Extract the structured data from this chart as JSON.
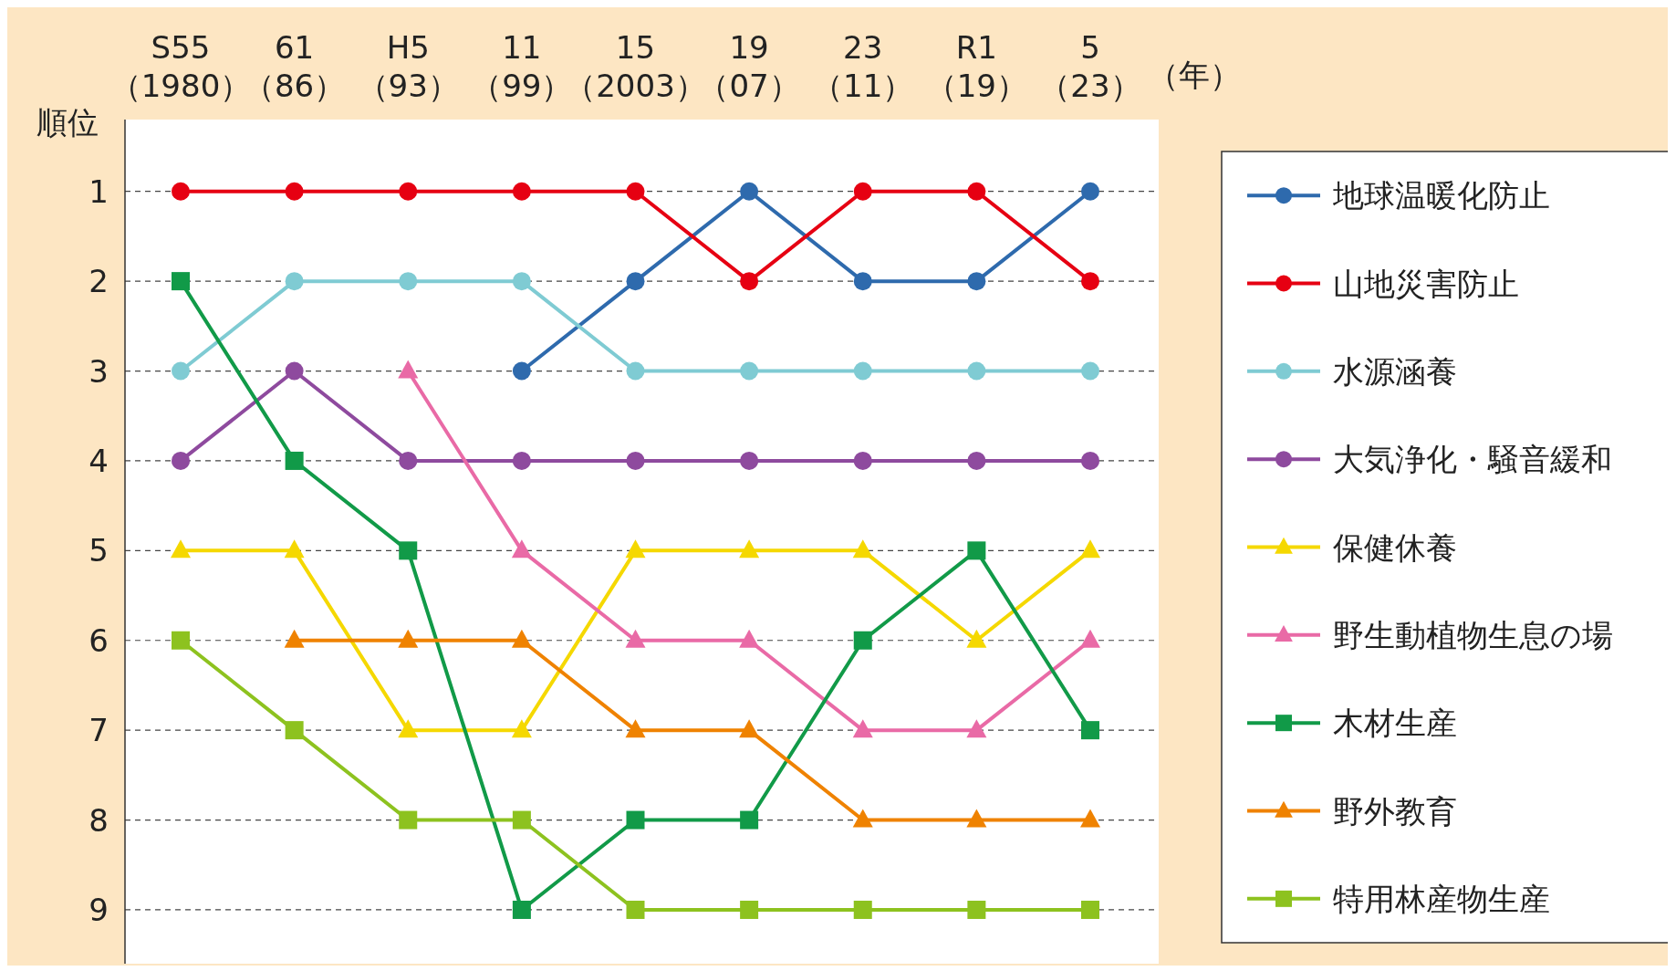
{
  "chart_data": {
    "type": "line",
    "xlabel": "（年）",
    "ylabel": "順位",
    "categories": [
      "S55\n（1980）",
      "61\n（86）",
      "H5\n（93）",
      "11\n（99）",
      "15\n（2003）",
      "19\n（07）",
      "23\n（11）",
      "R1\n（19）",
      "5\n（23）"
    ],
    "ylim": [
      9.6,
      0.2
    ],
    "yticks": [
      1,
      2,
      3,
      4,
      5,
      6,
      7,
      8,
      9
    ],
    "grid": "y",
    "legend": "right",
    "line_style": "solid",
    "series": [
      {
        "name": "地球温暖化防止",
        "color": "#2e6aad",
        "marker": "circle",
        "values": [
          null,
          null,
          null,
          3,
          2,
          1,
          2,
          2,
          1
        ]
      },
      {
        "name": "山地災害防止",
        "color": "#e60012",
        "marker": "circle",
        "values": [
          1,
          1,
          1,
          1,
          1,
          2,
          1,
          1,
          2
        ]
      },
      {
        "name": "水源涵養",
        "color": "#7fcbd3",
        "marker": "circle",
        "values": [
          3,
          2,
          2,
          2,
          3,
          3,
          3,
          3,
          3
        ]
      },
      {
        "name": "大気浄化・騒音緩和",
        "color": "#8e4a9e",
        "marker": "circle",
        "values": [
          4,
          3,
          4,
          4,
          4,
          4,
          4,
          4,
          4
        ]
      },
      {
        "name": "保健休養",
        "color": "#f5d800",
        "marker": "triangle",
        "values": [
          5,
          5,
          7,
          7,
          5,
          5,
          5,
          6,
          5
        ]
      },
      {
        "name": "野生動植物生息の場",
        "color": "#e96aa6",
        "marker": "triangle",
        "values": [
          null,
          null,
          3,
          5,
          6,
          6,
          7,
          7,
          6
        ]
      },
      {
        "name": "木材生産",
        "color": "#119a48",
        "marker": "square",
        "values": [
          2,
          4,
          5,
          9,
          8,
          8,
          6,
          5,
          7
        ]
      },
      {
        "name": "野外教育",
        "color": "#ef8200",
        "marker": "triangle",
        "values": [
          null,
          6,
          6,
          6,
          7,
          7,
          8,
          8,
          8
        ]
      },
      {
        "name": "特用林産物生産",
        "color": "#8dc21f",
        "marker": "square",
        "values": [
          6,
          7,
          8,
          8,
          9,
          9,
          9,
          9,
          9
        ]
      }
    ]
  }
}
